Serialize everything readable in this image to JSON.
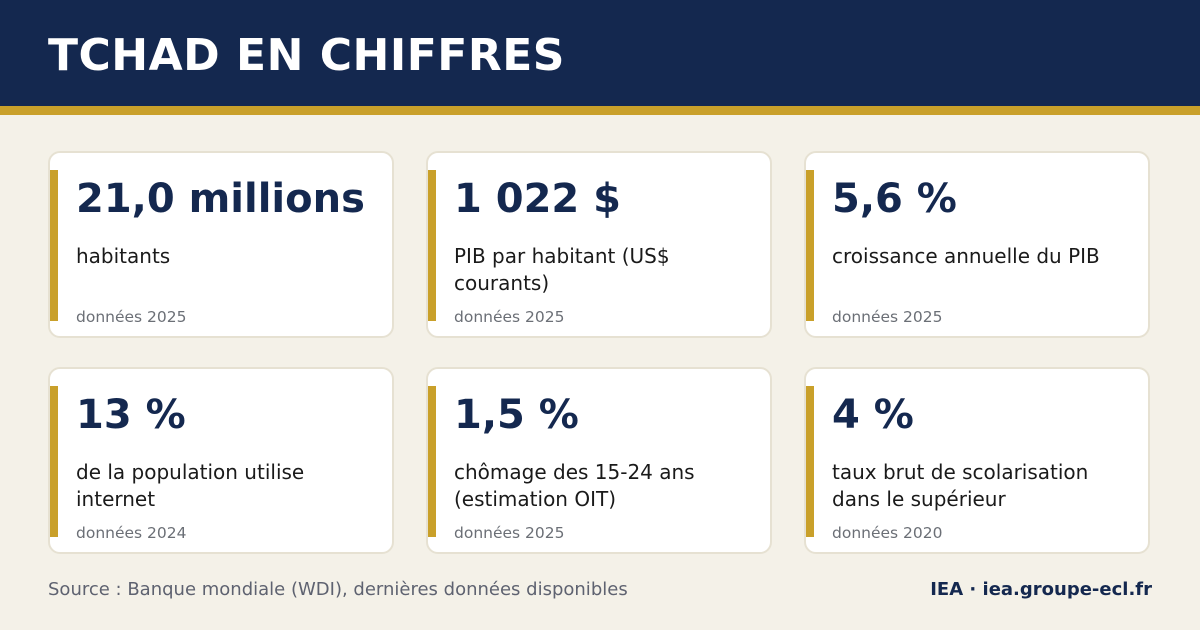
{
  "header": {
    "title": "TCHAD EN CHIFFRES"
  },
  "cards": [
    {
      "value": "21,0 millions",
      "label": "habitants",
      "year": "données 2025"
    },
    {
      "value": "1 022 $",
      "label": "PIB par habitant (US$ courants)",
      "year": "données 2025"
    },
    {
      "value": "5,6 %",
      "label": "croissance annuelle du PIB",
      "year": "données 2025"
    },
    {
      "value": "13 %",
      "label": "de la population utilise internet",
      "year": "données 2024"
    },
    {
      "value": "1,5 %",
      "label": "chômage des 15-24 ans (estimation OIT)",
      "year": "données 2025"
    },
    {
      "value": "4 %",
      "label": "taux brut de scolarisation dans le supérieur",
      "year": "données 2020"
    }
  ],
  "footer": {
    "source": "Source : Banque mondiale (WDI), dernières données disponibles",
    "brand": "IEA · iea.groupe-ecl.fr"
  },
  "colors": {
    "header_background": "#14284f",
    "accent_gold": "#c9a02a",
    "page_background": "#f4f1e8",
    "value_text": "#14284f"
  }
}
